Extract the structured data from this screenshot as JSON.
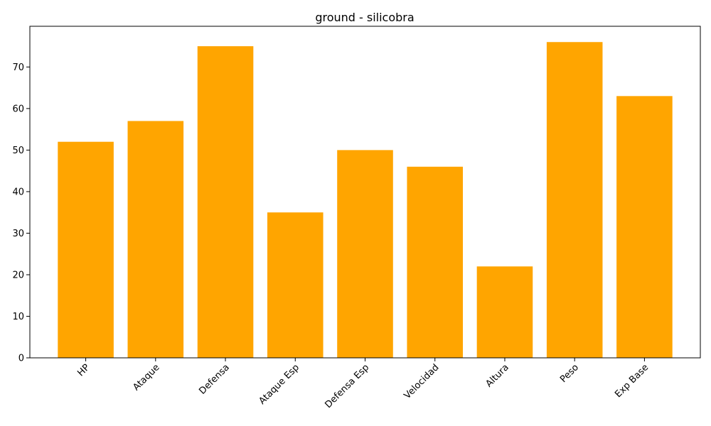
{
  "chart_data": {
    "type": "bar",
    "title": "ground - silicobra",
    "xlabel": "",
    "ylabel": "",
    "categories": [
      "HP",
      "Ataque",
      "Defensa",
      "Ataque Esp",
      "Defensa Esp",
      "Velocidad",
      "Altura",
      "Peso",
      "Exp Base"
    ],
    "values": [
      52,
      57,
      75,
      35,
      50,
      46,
      22,
      76,
      63
    ],
    "ylim": [
      0,
      80
    ],
    "yticks": [
      0,
      10,
      20,
      30,
      40,
      50,
      60,
      70
    ],
    "bar_color": "#FFA500",
    "grid": false,
    "legend": "none"
  }
}
